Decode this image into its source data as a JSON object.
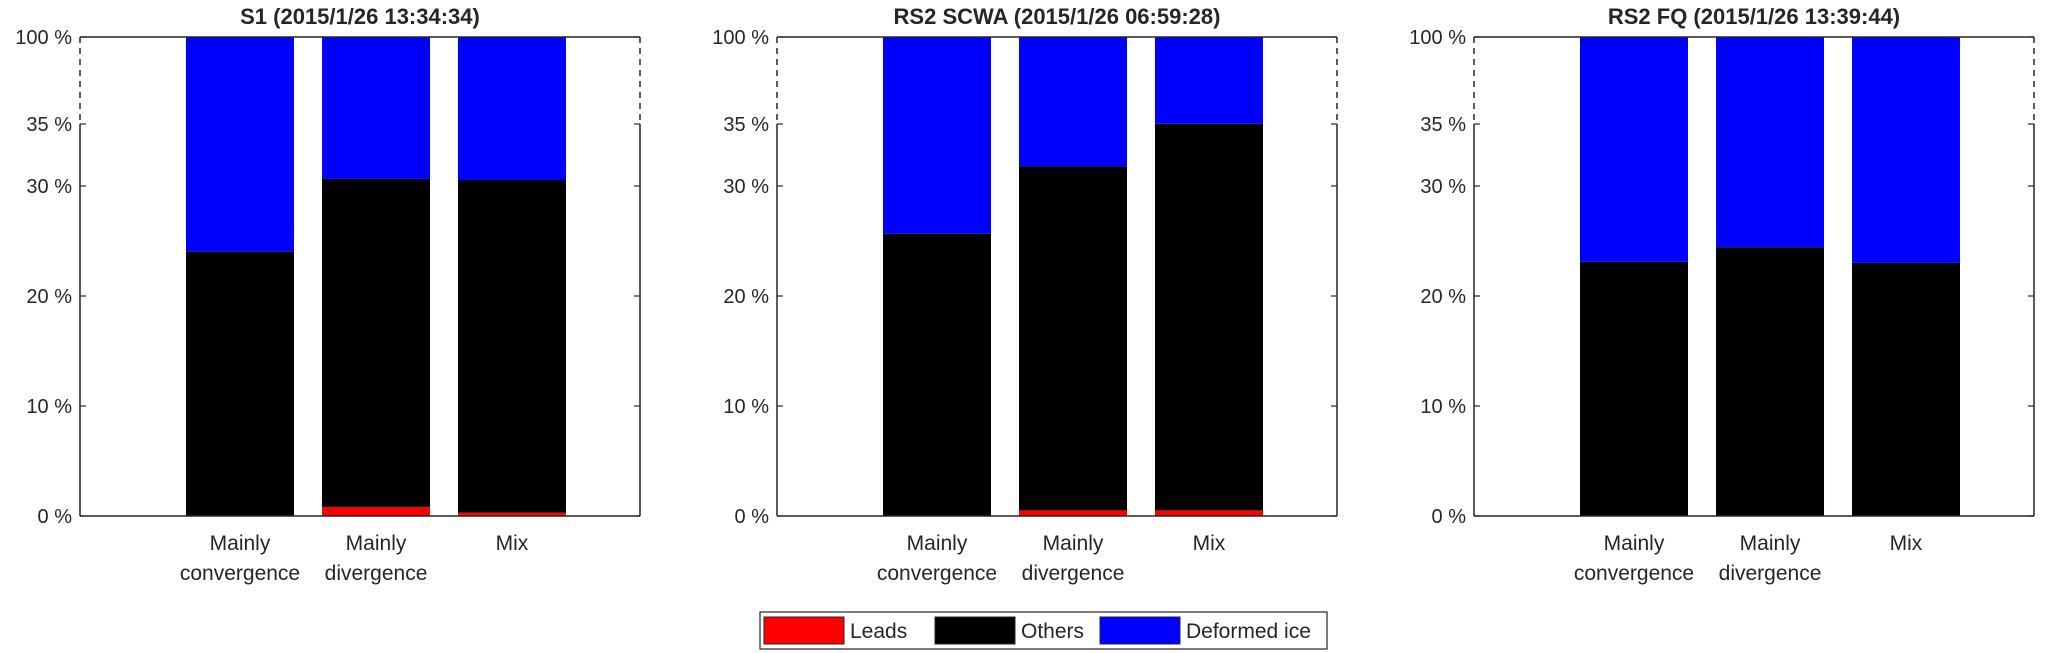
{
  "legend": {
    "placement": "bottom-center",
    "items": [
      {
        "name": "Leads",
        "color": "#ff0000"
      },
      {
        "name": "Others",
        "color": "#000000"
      },
      {
        "name": "Deformed ice",
        "color": "#0000ff"
      }
    ]
  },
  "chart_data": [
    {
      "type": "bar",
      "stacked": true,
      "title": "S1 (2015/1/26 13:34:34)",
      "categories": [
        [
          "Mainly",
          "convergence"
        ],
        [
          "Mainly",
          "divergence"
        ],
        [
          "Mix"
        ]
      ],
      "y_tick_labels": [
        "0 %",
        "10 %",
        "20 %",
        "30 %",
        "35 %",
        "100 %"
      ],
      "y_axis_note": "broken axis: 0-35 % linear, 35-100 % compressed",
      "ylim": [
        0,
        100
      ],
      "series": [
        {
          "name": "Leads",
          "values": [
            0,
            0.8,
            0.3
          ]
        },
        {
          "name": "Others",
          "values": [
            23.6,
            29.3,
            29.7
          ]
        },
        {
          "name": "Deformed ice",
          "values": [
            76.4,
            69.9,
            70.0
          ]
        }
      ]
    },
    {
      "type": "bar",
      "stacked": true,
      "title": "RS2 SCWA (2015/1/26 06:59:28)",
      "categories": [
        [
          "Mainly",
          "convergence"
        ],
        [
          "Mainly",
          "divergence"
        ],
        [
          "Mix"
        ]
      ],
      "y_tick_labels": [
        "0 %",
        "10 %",
        "20 %",
        "30 %",
        "35 %",
        "100 %"
      ],
      "y_axis_note": "broken axis: 0-35 % linear, 35-100 % compressed",
      "ylim": [
        0,
        100
      ],
      "series": [
        {
          "name": "Leads",
          "values": [
            0,
            0.5,
            0.5
          ]
        },
        {
          "name": "Others",
          "values": [
            25.2,
            30.7,
            34.7
          ]
        },
        {
          "name": "Deformed ice",
          "values": [
            74.8,
            68.8,
            64.8
          ]
        }
      ]
    },
    {
      "type": "bar",
      "stacked": true,
      "title": "RS2 FQ (2015/1/26 13:39:44)",
      "categories": [
        [
          "Mainly",
          "convergence"
        ],
        [
          "Mainly",
          "divergence"
        ],
        [
          "Mix"
        ]
      ],
      "y_tick_labels": [
        "0 %",
        "10 %",
        "20 %",
        "30 %",
        "35 %",
        "100 %"
      ],
      "y_axis_note": "broken axis: 0-35 % linear, 35-100 % compressed",
      "ylim": [
        0,
        100
      ],
      "series": [
        {
          "name": "Leads",
          "values": [
            0,
            0,
            0
          ]
        },
        {
          "name": "Others",
          "values": [
            22.7,
            24.0,
            22.6
          ]
        },
        {
          "name": "Deformed ice",
          "values": [
            77.3,
            76.0,
            77.4
          ]
        }
      ]
    }
  ]
}
